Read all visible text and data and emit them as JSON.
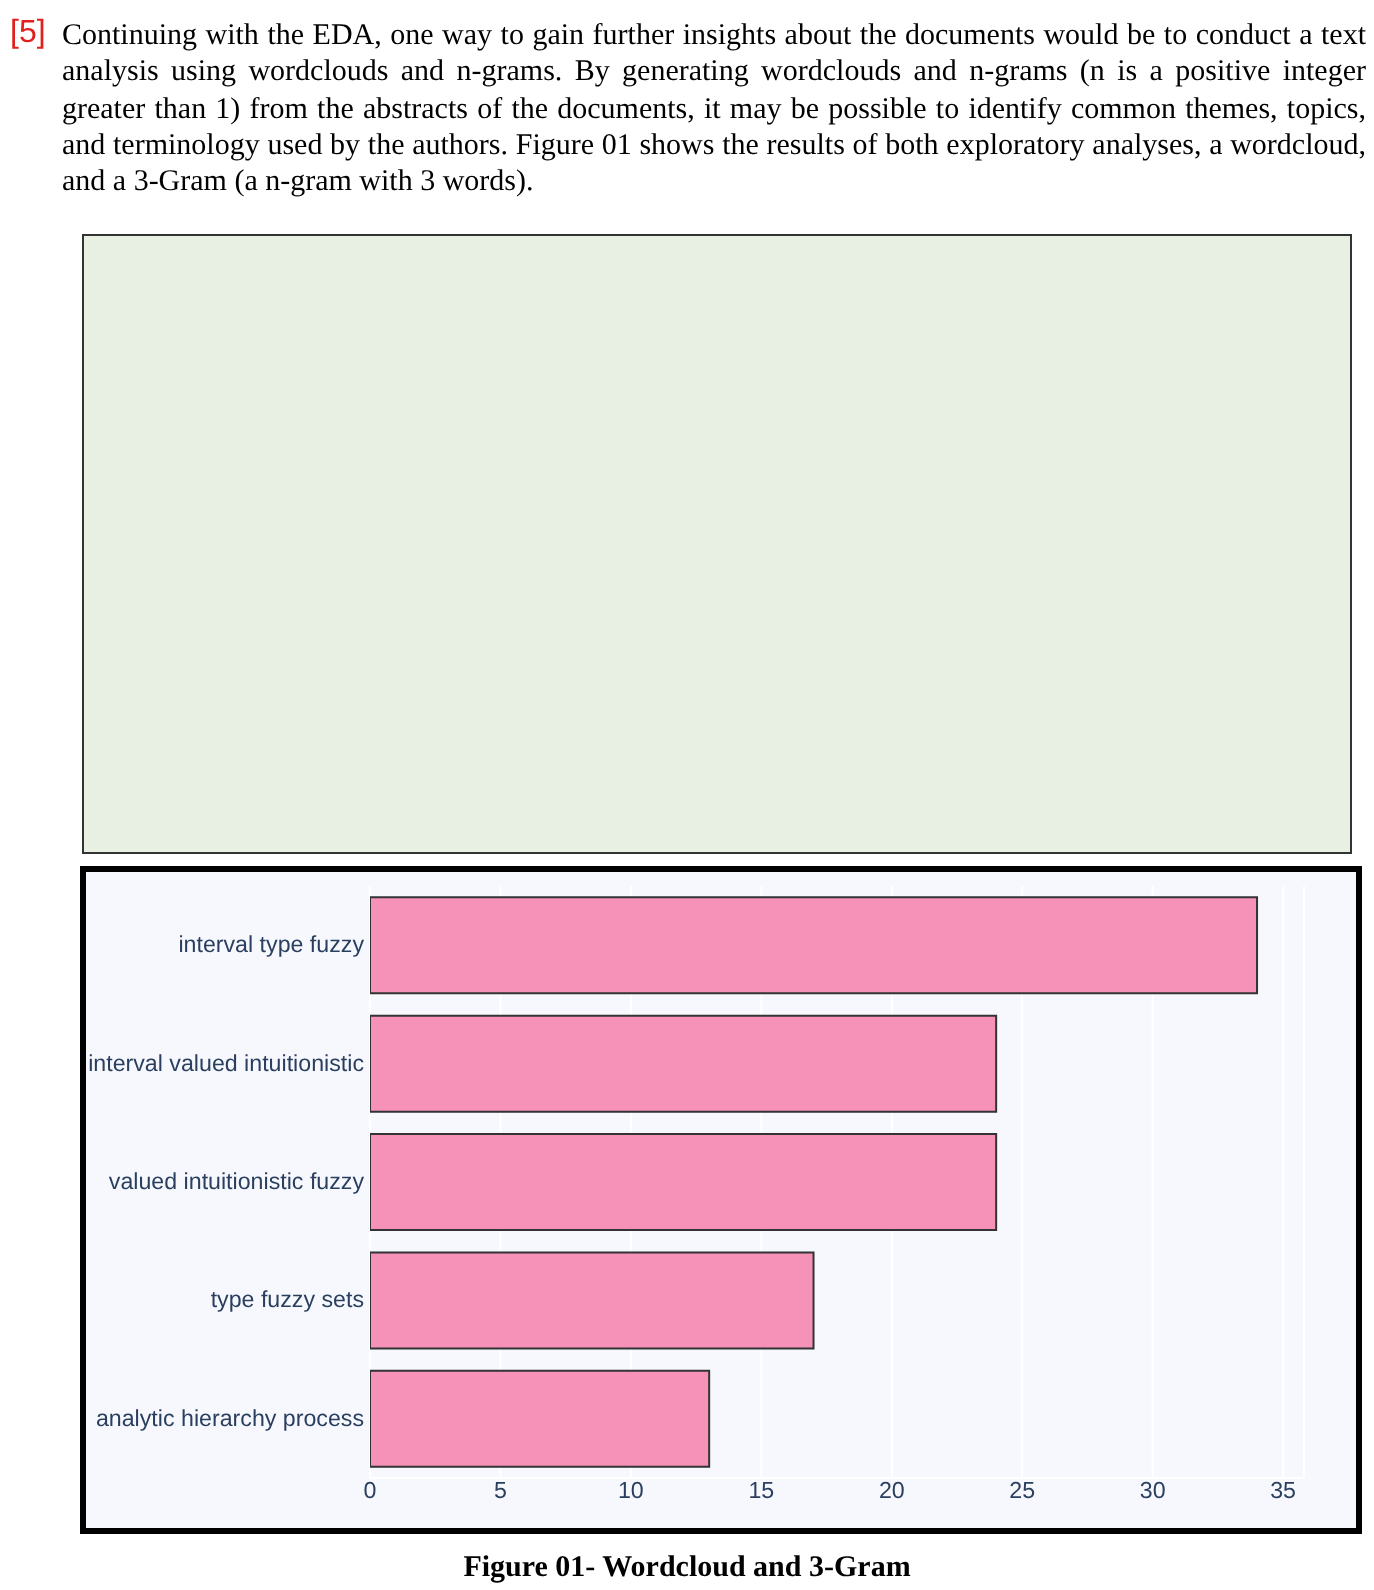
{
  "chart_data": {
    "type": "bar",
    "orientation": "horizontal",
    "title": "Figure 01- Wordcloud and 3-Gram",
    "annotations": [
      "[5]",
      "Continuing with the EDA, one way to gain further insights about the documents would be to conduct a text analysis using wordclouds and n-grams. By generating wordclouds and n-grams (n is a positive integer greater than 1) from the abstracts of the documents, it may be possible to identify common themes, topics, and terminology used by the authors. Figure 01 shows the results of both exploratory analyses, a wordcloud, and a 3-Gram (a n-gram with 3 words)."
    ],
    "categories": [
      "interval type fuzzy",
      "interval valued intuitionistic",
      "valued intuitionistic fuzzy",
      "type fuzzy sets",
      "analytic hierarchy process"
    ],
    "values": [
      34,
      24,
      24,
      17,
      13
    ],
    "color": "#f692b8",
    "xlim": [
      0,
      35.8
    ],
    "xticks": [
      0,
      5,
      10,
      15,
      20,
      25,
      30,
      35
    ],
    "grid": "x"
  }
}
